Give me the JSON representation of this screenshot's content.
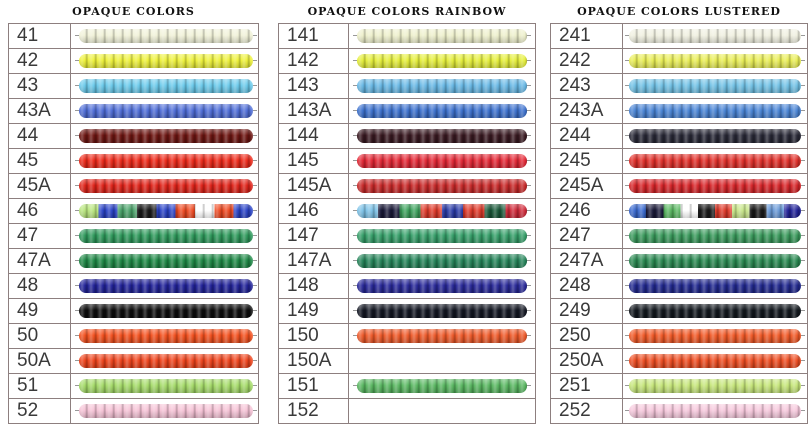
{
  "panels": [
    {
      "title": "OPAQUE COLORS",
      "rows": [
        {
          "code": "41",
          "color": "#f1f2d8"
        },
        {
          "code": "42",
          "color": "#eef23a"
        },
        {
          "code": "43",
          "color": "#6ccbec"
        },
        {
          "code": "43A",
          "color": "#4f6ed8"
        },
        {
          "code": "44",
          "color": "#6e1612"
        },
        {
          "code": "45",
          "color": "#ef2a1a"
        },
        {
          "code": "45A",
          "color": "#e1241a"
        },
        {
          "code": "46",
          "colors": [
            "#b9e67e",
            "#2b44c8",
            "#4aa36a",
            "#1b1b1b",
            "#2b44c8",
            "#ef4a22",
            "#ffffff",
            "#ef4a22",
            "#2b44c8"
          ]
        },
        {
          "code": "47",
          "color": "#2f9a5c"
        },
        {
          "code": "47A",
          "color": "#1f8a47"
        },
        {
          "code": "48",
          "color": "#23249a"
        },
        {
          "code": "49",
          "color": "#0d0d0d"
        },
        {
          "code": "50",
          "color": "#f4511f"
        },
        {
          "code": "50A",
          "color": "#f0441c"
        },
        {
          "code": "51",
          "color": "#a6dc6a"
        },
        {
          "code": "52",
          "color": "#f6c3d6"
        }
      ]
    },
    {
      "title": "OPAQUE COLORS RAINBOW",
      "rows": [
        {
          "code": "141",
          "color": "#eef0cc"
        },
        {
          "code": "142",
          "color": "#e5ef3a"
        },
        {
          "code": "143",
          "color": "#69b9e6"
        },
        {
          "code": "143A",
          "color": "#3d72cf"
        },
        {
          "code": "144",
          "color": "#3a1a22"
        },
        {
          "code": "145",
          "color": "#e52836"
        },
        {
          "code": "145A",
          "color": "#c92a2a"
        },
        {
          "code": "146",
          "colors": [
            "#7ec3e8",
            "#1b1b3b",
            "#3ea35e",
            "#e03a2a",
            "#2b3ca8",
            "#e03a2a",
            "#1b5a3b",
            "#d02a3a"
          ]
        },
        {
          "code": "147",
          "color": "#36a06a"
        },
        {
          "code": "147A",
          "color": "#25855a"
        },
        {
          "code": "148",
          "color": "#2a2a9a"
        },
        {
          "code": "149",
          "color": "#141824"
        },
        {
          "code": "150",
          "color": "#ef5a2a"
        },
        {
          "code": "150A"
        },
        {
          "code": "151",
          "color": "#5ab862"
        },
        {
          "code": "152"
        }
      ]
    },
    {
      "title": "OPAQUE COLORS LUSTERED",
      "rows": [
        {
          "code": "241",
          "color": "#f0f0e0"
        },
        {
          "code": "242",
          "color": "#e9ee55"
        },
        {
          "code": "243",
          "color": "#72c2e6"
        },
        {
          "code": "243A",
          "color": "#4a85d6"
        },
        {
          "code": "244",
          "color": "#2a2a38"
        },
        {
          "code": "245",
          "color": "#e2302a"
        },
        {
          "code": "245A",
          "color": "#d8262a"
        },
        {
          "code": "246",
          "colors": [
            "#3a6ad0",
            "#1b1b3b",
            "#5ab862",
            "#ffffff",
            "#1b1b1b",
            "#e03a2a",
            "#c8e68a",
            "#1b1b1b",
            "#6a9ad8",
            "#23249a"
          ]
        },
        {
          "code": "247",
          "color": "#3a9a5c"
        },
        {
          "code": "247A",
          "color": "#2a8a52"
        },
        {
          "code": "248",
          "color": "#232a90"
        },
        {
          "code": "249",
          "color": "#141a20"
        },
        {
          "code": "250",
          "color": "#f25a28"
        },
        {
          "code": "250A",
          "color": "#ef4e22"
        },
        {
          "code": "251",
          "color": "#c6e67a"
        },
        {
          "code": "252",
          "color": "#f6c8dc"
        }
      ]
    }
  ]
}
